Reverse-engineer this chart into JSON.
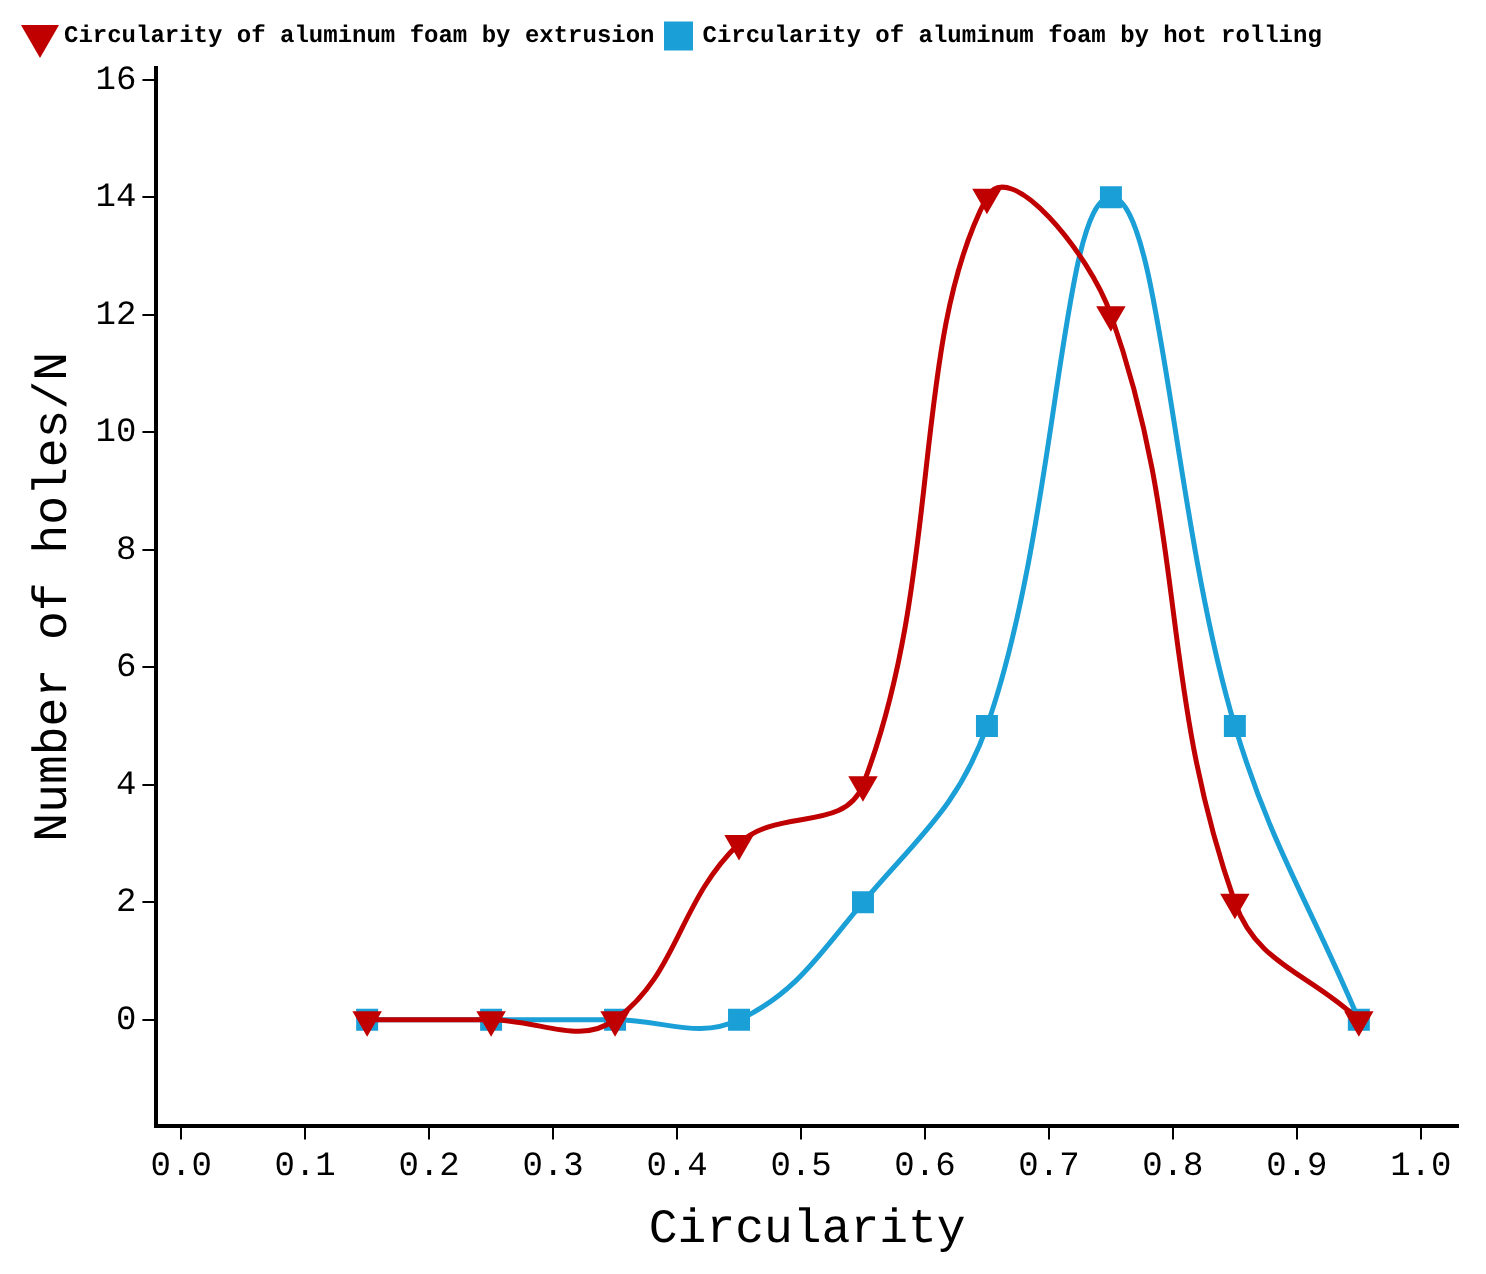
{
  "chart_data": {
    "type": "line",
    "xlabel": "Circularity",
    "ylabel": "Number of holes/N",
    "x": [
      0.15,
      0.25,
      0.35,
      0.45,
      0.55,
      0.65,
      0.75,
      0.85,
      0.95
    ],
    "series": [
      {
        "name": "Circularity of aluminum foam by extrusion",
        "color": "#c00000",
        "marker": "triangle",
        "values": [
          0,
          0,
          0,
          3,
          4,
          14,
          12,
          2,
          0
        ]
      },
      {
        "name": "Circularity of aluminum foam by hot rolling",
        "color": "#1a9fd6",
        "marker": "square",
        "values": [
          0,
          0,
          0,
          0,
          2,
          5,
          14,
          5,
          0
        ]
      }
    ],
    "xlim": [
      -0.02,
      1.03
    ],
    "xticks": [
      {
        "value": 0,
        "label": "0.0"
      },
      {
        "value": 0.1,
        "label": "0.1"
      },
      {
        "value": 0.2,
        "label": "0.2"
      },
      {
        "value": 0.3,
        "label": "0.3"
      },
      {
        "value": 0.4,
        "label": "0.4"
      },
      {
        "value": 0.5,
        "label": "0.5"
      },
      {
        "value": 0.6,
        "label": "0.6"
      },
      {
        "value": 0.7,
        "label": "0.7"
      },
      {
        "value": 0.8,
        "label": "0.8"
      },
      {
        "value": 0.9,
        "label": "0.9"
      },
      {
        "value": 1,
        "label": "1.0"
      }
    ],
    "ylim": [
      -1.8,
      16.2
    ],
    "yticks": [
      0,
      2,
      4,
      6,
      8,
      10,
      12,
      14,
      16
    ],
    "grid": false,
    "legend": "top left",
    "line_style": "solid"
  }
}
